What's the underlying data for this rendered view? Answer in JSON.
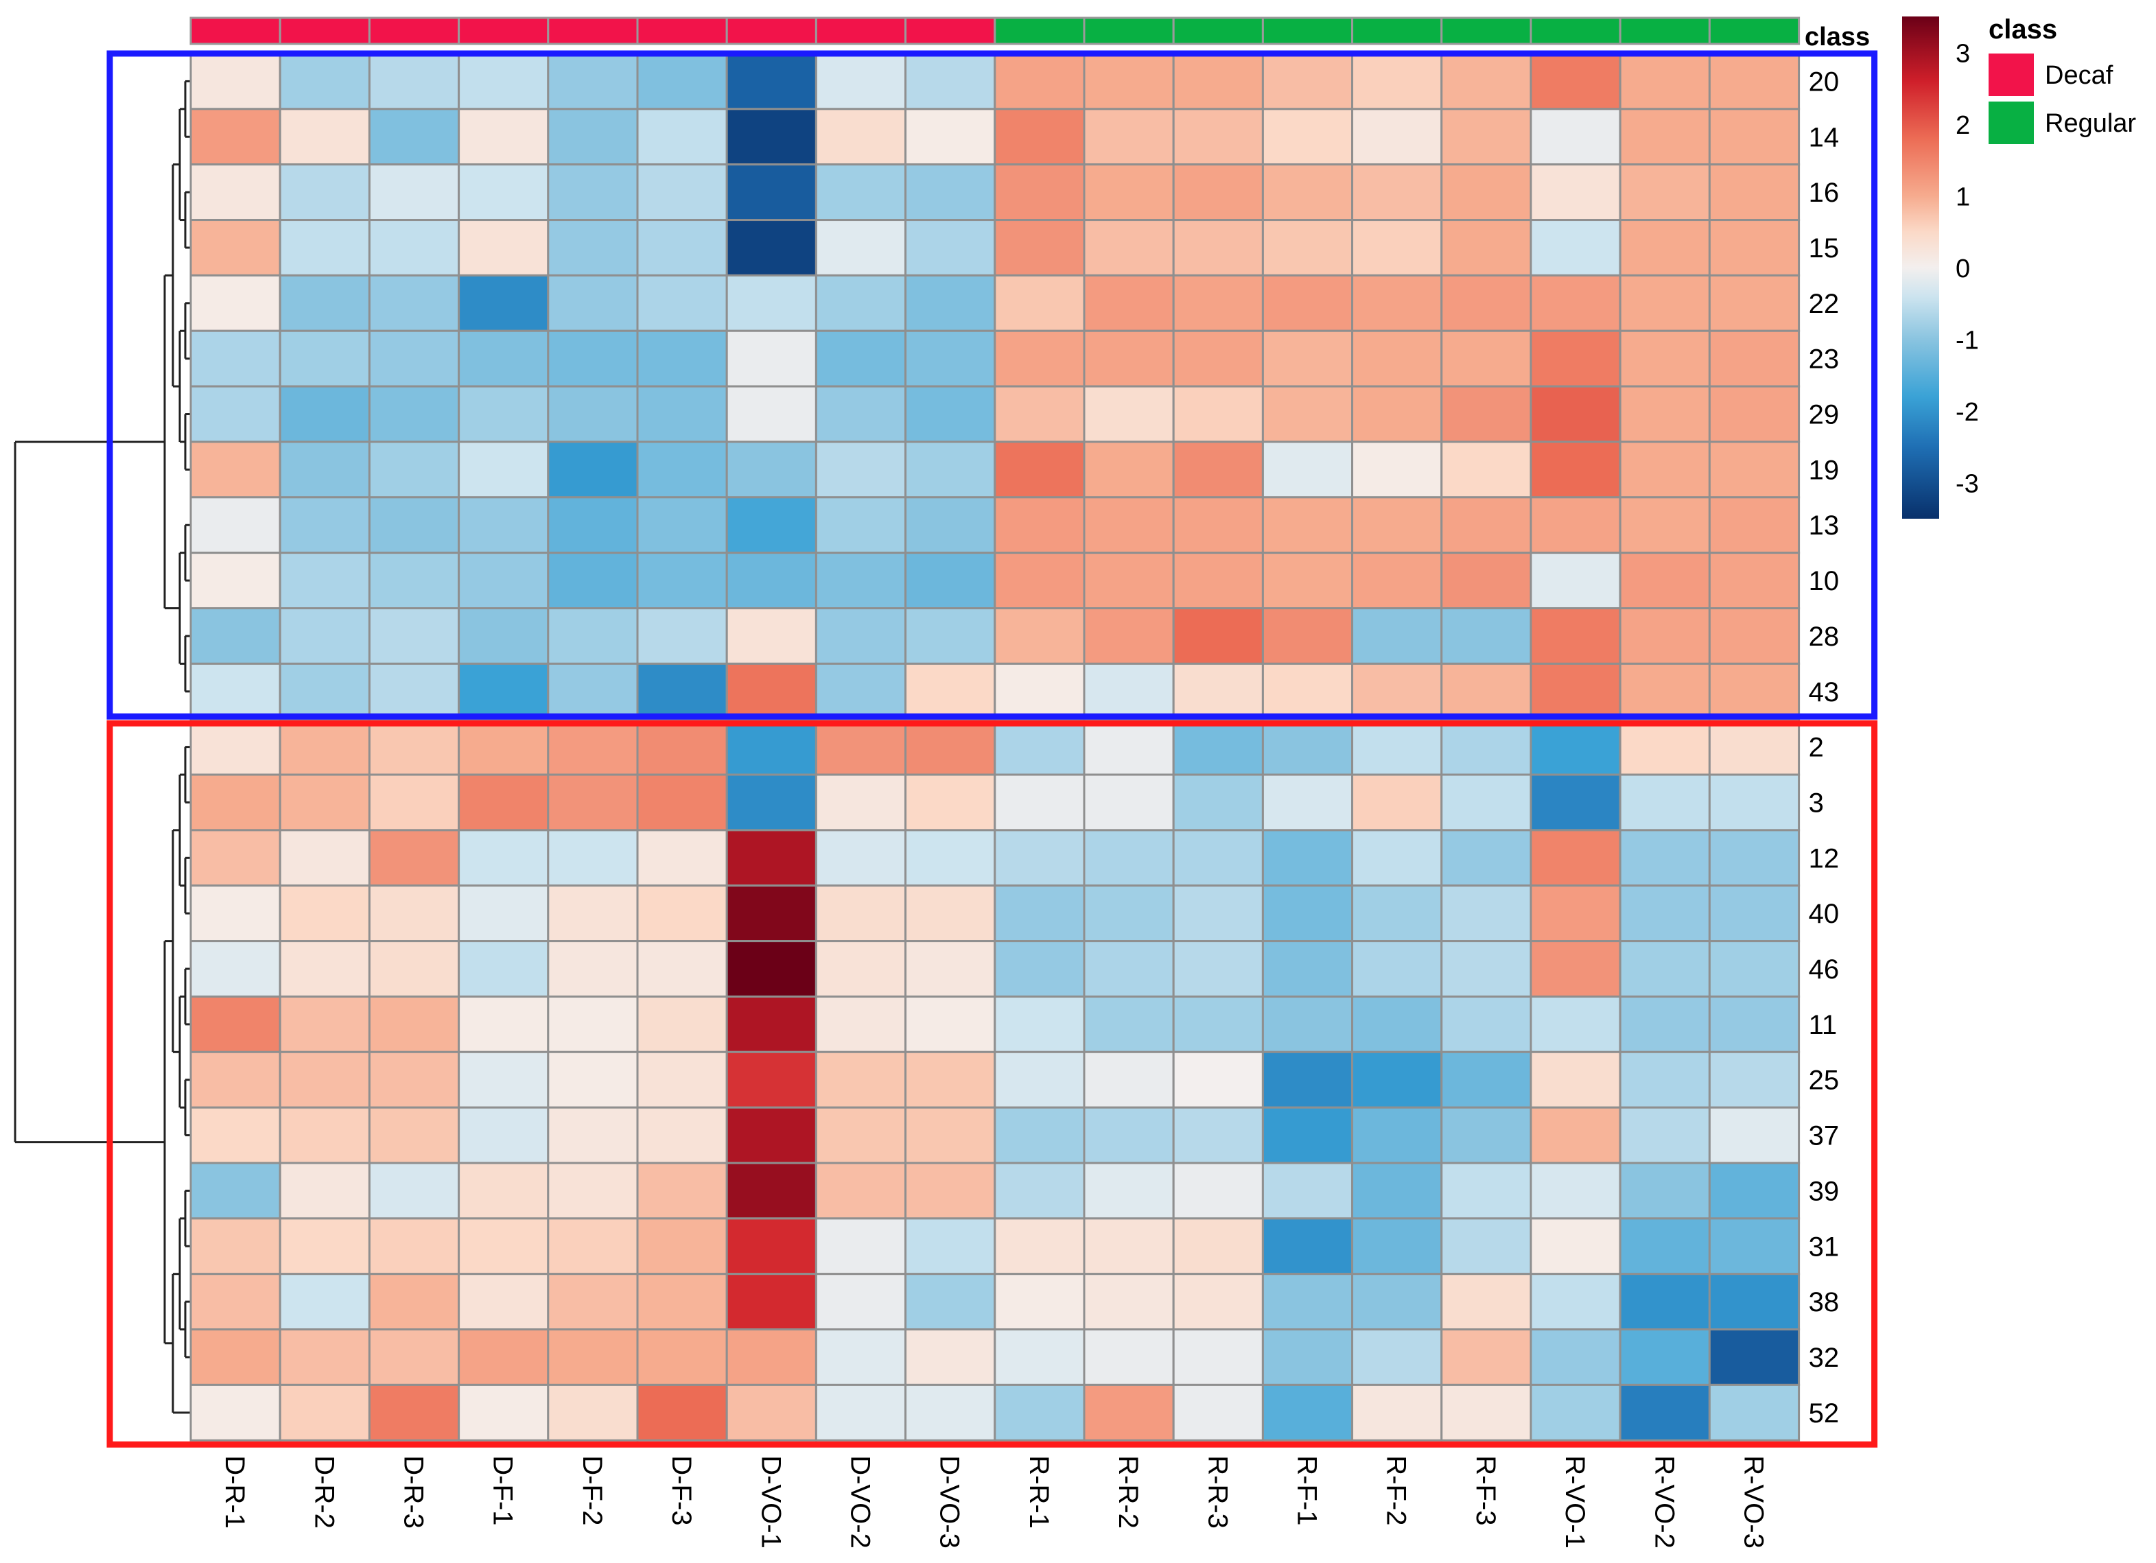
{
  "chart_data": {
    "type": "heatmap",
    "columns": [
      "D-R-1",
      "D-R-2",
      "D-R-3",
      "D-F-1",
      "D-F-2",
      "D-F-3",
      "D-VO-1",
      "D-VO-2",
      "D-VO-3",
      "R-R-1",
      "R-R-2",
      "R-R-3",
      "R-F-1",
      "R-F-2",
      "R-F-3",
      "R-VO-1",
      "R-VO-2",
      "R-VO-3"
    ],
    "column_classes": [
      "Decaf",
      "Decaf",
      "Decaf",
      "Decaf",
      "Decaf",
      "Decaf",
      "Decaf",
      "Decaf",
      "Decaf",
      "Regular",
      "Regular",
      "Regular",
      "Regular",
      "Regular",
      "Regular",
      "Regular",
      "Regular",
      "Regular"
    ],
    "rows": [
      "20",
      "14",
      "16",
      "15",
      "22",
      "23",
      "29",
      "19",
      "13",
      "10",
      "28",
      "43",
      "2",
      "3",
      "12",
      "40",
      "46",
      "11",
      "25",
      "37",
      "39",
      "31",
      "38",
      "32",
      "52"
    ],
    "values": [
      [
        0.2,
        -0.8,
        -0.6,
        -0.5,
        -0.9,
        -1.1,
        -2.7,
        -0.3,
        -0.6,
        1.1,
        1.0,
        1.0,
        0.8,
        0.6,
        0.9,
        1.6,
        1.0,
        1.0
      ],
      [
        1.2,
        0.3,
        -1.1,
        0.2,
        -1.0,
        -0.5,
        -3.2,
        0.4,
        0.1,
        1.5,
        0.8,
        0.8,
        0.5,
        0.2,
        0.9,
        -0.1,
        1.0,
        1.0
      ],
      [
        0.2,
        -0.6,
        -0.3,
        -0.4,
        -0.9,
        -0.6,
        -2.8,
        -0.8,
        -0.9,
        1.3,
        1.0,
        1.1,
        0.9,
        0.8,
        1.0,
        0.3,
        0.9,
        1.0
      ],
      [
        0.9,
        -0.5,
        -0.5,
        0.3,
        -0.9,
        -0.7,
        -3.2,
        -0.2,
        -0.7,
        1.3,
        0.8,
        0.8,
        0.7,
        0.6,
        1.0,
        -0.4,
        1.0,
        1.0
      ],
      [
        0.1,
        -1.0,
        -0.9,
        -2.1,
        -0.9,
        -0.7,
        -0.5,
        -0.8,
        -1.1,
        0.7,
        1.2,
        1.1,
        1.2,
        1.1,
        1.2,
        1.2,
        1.0,
        1.0
      ],
      [
        -0.7,
        -0.8,
        -0.9,
        -1.1,
        -1.2,
        -1.2,
        -0.1,
        -1.2,
        -1.1,
        1.1,
        1.1,
        1.1,
        0.9,
        1.0,
        1.0,
        1.6,
        1.0,
        1.1
      ],
      [
        -0.7,
        -1.3,
        -1.1,
        -0.8,
        -1.0,
        -1.1,
        -0.1,
        -0.9,
        -1.2,
        0.8,
        0.4,
        0.6,
        0.9,
        1.0,
        1.3,
        1.9,
        1.0,
        1.1
      ],
      [
        0.9,
        -1.0,
        -0.8,
        -0.4,
        -1.9,
        -1.2,
        -1.0,
        -0.6,
        -0.8,
        1.7,
        1.0,
        1.4,
        -0.2,
        0.1,
        0.5,
        1.8,
        1.0,
        1.0
      ],
      [
        -0.1,
        -0.9,
        -1.0,
        -0.9,
        -1.4,
        -1.1,
        -1.7,
        -0.8,
        -1.0,
        1.2,
        1.1,
        1.1,
        1.0,
        1.0,
        1.1,
        1.1,
        1.0,
        1.1
      ],
      [
        0.1,
        -0.7,
        -0.8,
        -0.9,
        -1.4,
        -1.2,
        -1.3,
        -1.1,
        -1.3,
        1.2,
        1.1,
        1.1,
        1.0,
        1.1,
        1.3,
        -0.2,
        1.2,
        1.1
      ],
      [
        -1.0,
        -0.7,
        -0.6,
        -1.0,
        -0.8,
        -0.6,
        0.3,
        -0.9,
        -0.8,
        0.9,
        1.2,
        1.8,
        1.4,
        -1.0,
        -1.0,
        1.6,
        1.1,
        1.1
      ],
      [
        -0.4,
        -0.8,
        -0.6,
        -1.8,
        -0.9,
        -2.1,
        1.7,
        -0.9,
        0.5,
        0.1,
        -0.3,
        0.4,
        0.5,
        0.8,
        0.9,
        1.6,
        1.0,
        1.0
      ],
      [
        0.3,
        0.9,
        0.7,
        1.0,
        1.2,
        1.4,
        -1.9,
        1.3,
        1.4,
        -0.7,
        -0.1,
        -1.2,
        -1.0,
        -0.5,
        -0.7,
        -1.8,
        0.5,
        0.4
      ],
      [
        1.0,
        0.9,
        0.6,
        1.5,
        1.3,
        1.5,
        -2.1,
        0.2,
        0.5,
        -0.1,
        -0.1,
        -0.8,
        -0.3,
        0.6,
        -0.5,
        -2.2,
        -0.5,
        -0.5
      ],
      [
        0.8,
        0.2,
        1.3,
        -0.4,
        -0.4,
        0.2,
        2.9,
        -0.3,
        -0.4,
        -0.6,
        -0.7,
        -0.7,
        -1.2,
        -0.5,
        -0.9,
        1.5,
        -0.9,
        -0.9
      ],
      [
        0.1,
        0.5,
        0.4,
        -0.2,
        0.3,
        0.5,
        3.3,
        0.4,
        0.4,
        -0.9,
        -0.8,
        -0.6,
        -1.2,
        -0.8,
        -0.6,
        1.2,
        -0.9,
        -0.9
      ],
      [
        -0.2,
        0.3,
        0.4,
        -0.5,
        0.2,
        0.2,
        3.5,
        0.3,
        0.2,
        -0.9,
        -0.7,
        -0.6,
        -1.1,
        -0.7,
        -0.6,
        1.3,
        -0.8,
        -0.8
      ],
      [
        1.5,
        0.8,
        0.9,
        0.1,
        0.1,
        0.4,
        2.9,
        0.2,
        0.1,
        -0.4,
        -0.8,
        -0.8,
        -1.0,
        -1.1,
        -0.7,
        -0.5,
        -0.9,
        -0.9
      ],
      [
        0.8,
        0.8,
        0.8,
        -0.2,
        0.1,
        0.3,
        2.4,
        0.7,
        0.7,
        -0.3,
        -0.1,
        0.0,
        -2.1,
        -1.9,
        -1.3,
        0.4,
        -0.7,
        -0.6
      ],
      [
        0.5,
        0.6,
        0.7,
        -0.3,
        0.2,
        0.3,
        2.9,
        0.7,
        0.7,
        -0.8,
        -0.7,
        -0.6,
        -1.9,
        -1.3,
        -1.0,
        0.9,
        -0.6,
        -0.2
      ],
      [
        -1.0,
        0.2,
        -0.3,
        0.4,
        0.3,
        0.8,
        3.1,
        0.8,
        0.8,
        -0.6,
        -0.2,
        -0.1,
        -0.6,
        -1.3,
        -0.5,
        -0.3,
        -1.0,
        -1.4
      ],
      [
        0.7,
        0.5,
        0.6,
        0.5,
        0.6,
        0.9,
        2.5,
        -0.1,
        -0.5,
        0.3,
        0.3,
        0.4,
        -2.0,
        -1.3,
        -0.6,
        0.1,
        -1.4,
        -1.3
      ],
      [
        0.8,
        -0.4,
        0.9,
        0.3,
        0.8,
        0.9,
        2.5,
        -0.1,
        -0.8,
        0.1,
        0.2,
        0.3,
        -1.0,
        -1.0,
        0.4,
        -0.5,
        -2.0,
        -2.0
      ],
      [
        1.0,
        0.8,
        0.8,
        1.1,
        1.0,
        1.0,
        1.1,
        -0.2,
        0.2,
        -0.2,
        -0.1,
        -0.1,
        -1.0,
        -0.6,
        0.8,
        -0.9,
        -1.5,
        -2.8
      ],
      [
        0.1,
        0.6,
        1.6,
        0.1,
        0.4,
        1.8,
        0.8,
        -0.2,
        -0.2,
        -0.8,
        1.2,
        -0.1,
        -1.5,
        0.2,
        0.2,
        -0.8,
        -2.3,
        -0.8
      ]
    ],
    "clusters": [
      {
        "rows": [
          "20",
          "14",
          "16",
          "15",
          "22",
          "23",
          "29",
          "19",
          "13",
          "10",
          "28",
          "43"
        ],
        "border_color": "#1a1aff"
      },
      {
        "rows": [
          "2",
          "3",
          "12",
          "40",
          "46",
          "11",
          "25",
          "37",
          "39",
          "31",
          "38",
          "32",
          "52"
        ],
        "border_color": "#ff1a1a"
      }
    ],
    "color_scale": {
      "min": -3.5,
      "max": 3.5,
      "stops": [
        {
          "value": -3.5,
          "color": "#08306b"
        },
        {
          "value": -2.5,
          "color": "#1f6fb4"
        },
        {
          "value": -1.8,
          "color": "#3aa2d6"
        },
        {
          "value": -1.0,
          "color": "#8ac4e0"
        },
        {
          "value": -0.4,
          "color": "#cde4ef"
        },
        {
          "value": 0.0,
          "color": "#f3efee"
        },
        {
          "value": 0.5,
          "color": "#fbd9c7"
        },
        {
          "value": 1.0,
          "color": "#f6ab8e"
        },
        {
          "value": 1.8,
          "color": "#ec6c55"
        },
        {
          "value": 2.6,
          "color": "#cf1f2a"
        },
        {
          "value": 3.5,
          "color": "#6b0017"
        }
      ],
      "ticks": [
        "3",
        "2",
        "1",
        "0",
        "-1",
        "-2",
        "-3"
      ],
      "tick_values": [
        3,
        2,
        1,
        0,
        -1,
        -2,
        -3
      ]
    },
    "legend": {
      "title": "class",
      "entries": [
        {
          "label": "Decaf",
          "color": "#f2134a"
        },
        {
          "label": "Regular",
          "color": "#08b043"
        }
      ]
    },
    "annotation_label": "class"
  }
}
